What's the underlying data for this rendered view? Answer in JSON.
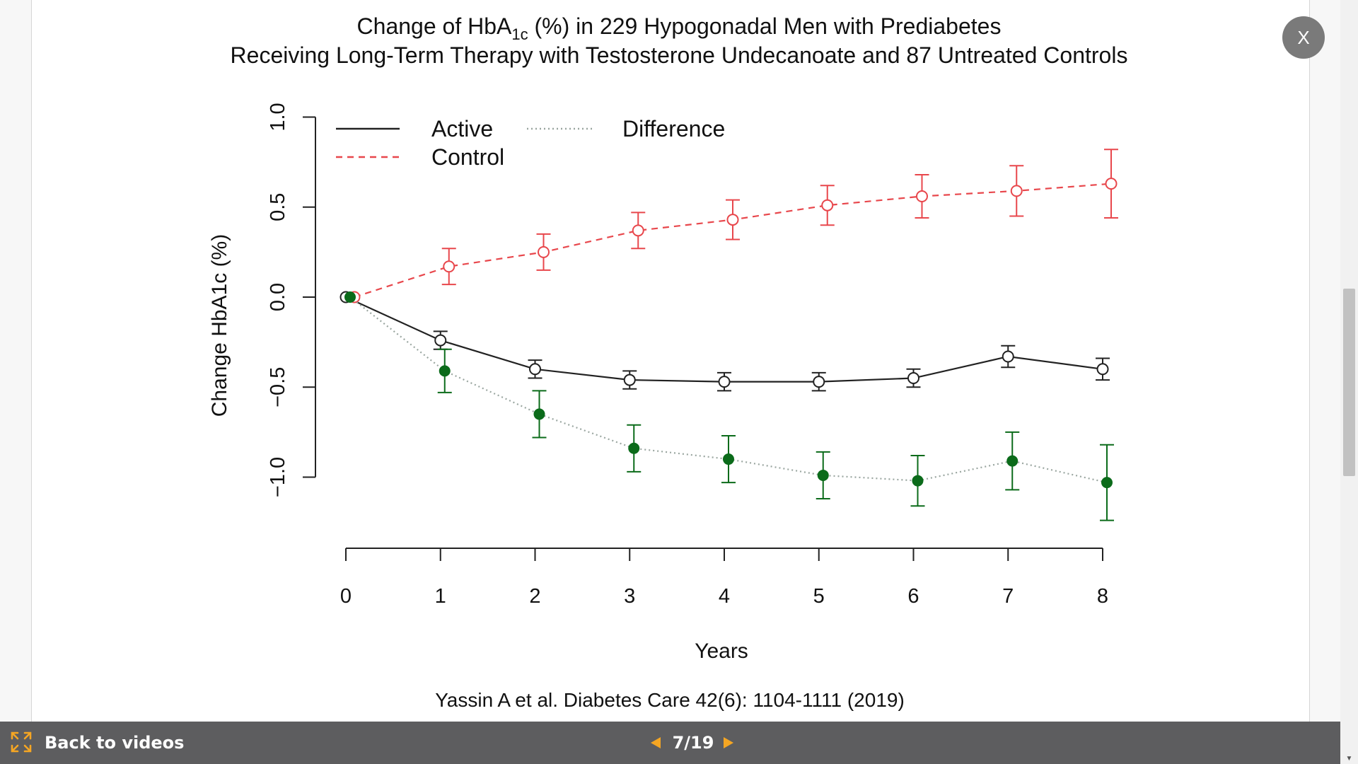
{
  "slide": {
    "close_label": "X",
    "citation": "Yassin A et al. Diabetes Care 42(6): 1104-1111 (2019)"
  },
  "toolbar": {
    "back_label": "Back to videos",
    "page_indicator": "7/19",
    "accent_color": "#f5a623"
  },
  "chart_data": {
    "type": "line",
    "title_line1_prefix": "Change of HbA",
    "title_line1_subscript": "1c",
    "title_line1_suffix": " (%) in 229 Hypogonadal Men with Prediabetes",
    "title_line2": "Receiving Long-Term Therapy with Testosterone Undecanoate and 87 Untreated Controls",
    "xlabel": "Years",
    "ylabel": "Change HbA1c (%)",
    "xlim": [
      0,
      8
    ],
    "ylim": [
      -1.0,
      1.0
    ],
    "x_ticks": [
      "0",
      "1",
      "2",
      "3",
      "4",
      "5",
      "6",
      "7",
      "8"
    ],
    "y_ticks": [
      "-1.0",
      "-0.5",
      "0.0",
      "0.5",
      "1.0"
    ],
    "legend": [
      {
        "name": "Active",
        "style": "solid",
        "color": "#222222"
      },
      {
        "name": "Control",
        "style": "dashed",
        "color": "#e8474c"
      },
      {
        "name": "Difference",
        "style": "dotted",
        "color": "#9aa6a0"
      }
    ],
    "series": [
      {
        "name": "Active",
        "color": "#222222",
        "style": "solid",
        "marker": "open-circle",
        "x": [
          0,
          1,
          2,
          3,
          4,
          5,
          6,
          7,
          8
        ],
        "values": [
          0,
          -0.24,
          -0.4,
          -0.46,
          -0.47,
          -0.47,
          -0.45,
          -0.33,
          -0.4
        ],
        "err": [
          0,
          0.05,
          0.05,
          0.05,
          0.05,
          0.05,
          0.05,
          0.06,
          0.06
        ]
      },
      {
        "name": "Control",
        "color": "#e8474c",
        "style": "dashed",
        "marker": "open-circle",
        "x": [
          0,
          1,
          2,
          3,
          4,
          5,
          6,
          7,
          8
        ],
        "values": [
          0,
          0.17,
          0.25,
          0.37,
          0.43,
          0.51,
          0.56,
          0.59,
          0.63
        ],
        "err": [
          0,
          0.1,
          0.1,
          0.1,
          0.11,
          0.11,
          0.12,
          0.14,
          0.19
        ]
      },
      {
        "name": "Difference",
        "color": "#0b6b1a",
        "line_color": "#9aa6a0",
        "style": "dotted",
        "marker": "filled-circle",
        "x": [
          0,
          1,
          2,
          3,
          4,
          5,
          6,
          7,
          8
        ],
        "values": [
          0,
          -0.41,
          -0.65,
          -0.84,
          -0.9,
          -0.99,
          -1.02,
          -0.91,
          -1.03
        ],
        "err": [
          0,
          0.12,
          0.13,
          0.13,
          0.13,
          0.13,
          0.14,
          0.16,
          0.21
        ]
      }
    ]
  }
}
